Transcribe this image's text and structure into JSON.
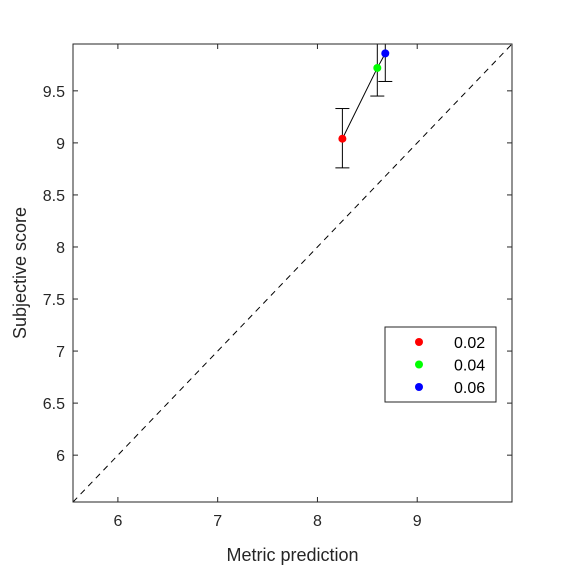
{
  "chart_data": {
    "type": "scatter",
    "xlabel": "Metric prediction",
    "ylabel": "Subjective score",
    "xlim": [
      5.55,
      9.95
    ],
    "ylim": [
      5.55,
      9.95
    ],
    "xticks": [
      6,
      7,
      8,
      9
    ],
    "yticks": [
      6,
      6.5,
      7,
      7.5,
      8,
      8.5,
      9,
      9.5
    ],
    "xtick_labels": [
      "6",
      "7",
      "8",
      "9"
    ],
    "ytick_labels": [
      "6",
      "6.5",
      "7",
      "7.5",
      "8",
      "8.5",
      "9",
      "9.5"
    ],
    "grid": false,
    "legend_position": "lower-right",
    "reference_line": "y = x (dashed)",
    "connecting_line": true,
    "series": [
      {
        "name": "0.02",
        "color": "#ff0000",
        "x": 8.25,
        "y": 9.04,
        "yerr_low": 8.76,
        "yerr_high": 9.33
      },
      {
        "name": "0.04",
        "color": "#00ff00",
        "x": 8.6,
        "y": 9.72,
        "yerr_low": 9.45,
        "yerr_high": 9.99
      },
      {
        "name": "0.06",
        "color": "#0000ff",
        "x": 8.68,
        "y": 9.86,
        "yerr_low": 9.59,
        "yerr_high": 10.13
      }
    ]
  }
}
